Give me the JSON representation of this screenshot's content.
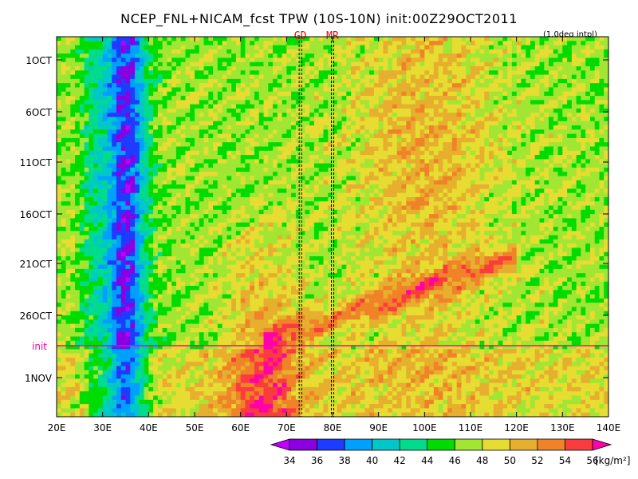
{
  "chart_data": {
    "type": "heatmap",
    "title": "NCEP_FNL+NICAM_fcst TPW (10S-10N) init:00Z29OCT2011",
    "note": "(1.0deg intpl)",
    "x_axis": {
      "range": [
        "20E",
        "140E"
      ],
      "ticks": [
        "20E",
        "30E",
        "40E",
        "50E",
        "60E",
        "70E",
        "80E",
        "90E",
        "100E",
        "110E",
        "120E",
        "130E",
        "140E"
      ]
    },
    "y_axis": {
      "direction": "time increasing downward",
      "ticks": [
        "1OCT",
        "6OCT",
        "11OCT",
        "16OCT",
        "21OCT",
        "26OCT",
        "init",
        "1NOV"
      ]
    },
    "init_marker": {
      "label": "init",
      "color": "#ff00aa"
    },
    "reference_lines": [
      {
        "label": "GD",
        "lon": 73,
        "color": "#ff0000"
      },
      {
        "label": "MR",
        "lon": 80,
        "color": "#ff0000"
      }
    ],
    "colorbar": {
      "unit": "[kg/m²]",
      "levels": [
        "34",
        "36",
        "38",
        "40",
        "42",
        "44",
        "46",
        "48",
        "50",
        "52",
        "54",
        "56"
      ],
      "colors": [
        "#c000ff",
        "#8a00e0",
        "#1e3cff",
        "#00a0ff",
        "#00c8c8",
        "#00dc8c",
        "#00dc00",
        "#a0e632",
        "#e6dc32",
        "#e6af2d",
        "#f08228",
        "#fa3c3c",
        "#ff00aa"
      ]
    }
  }
}
